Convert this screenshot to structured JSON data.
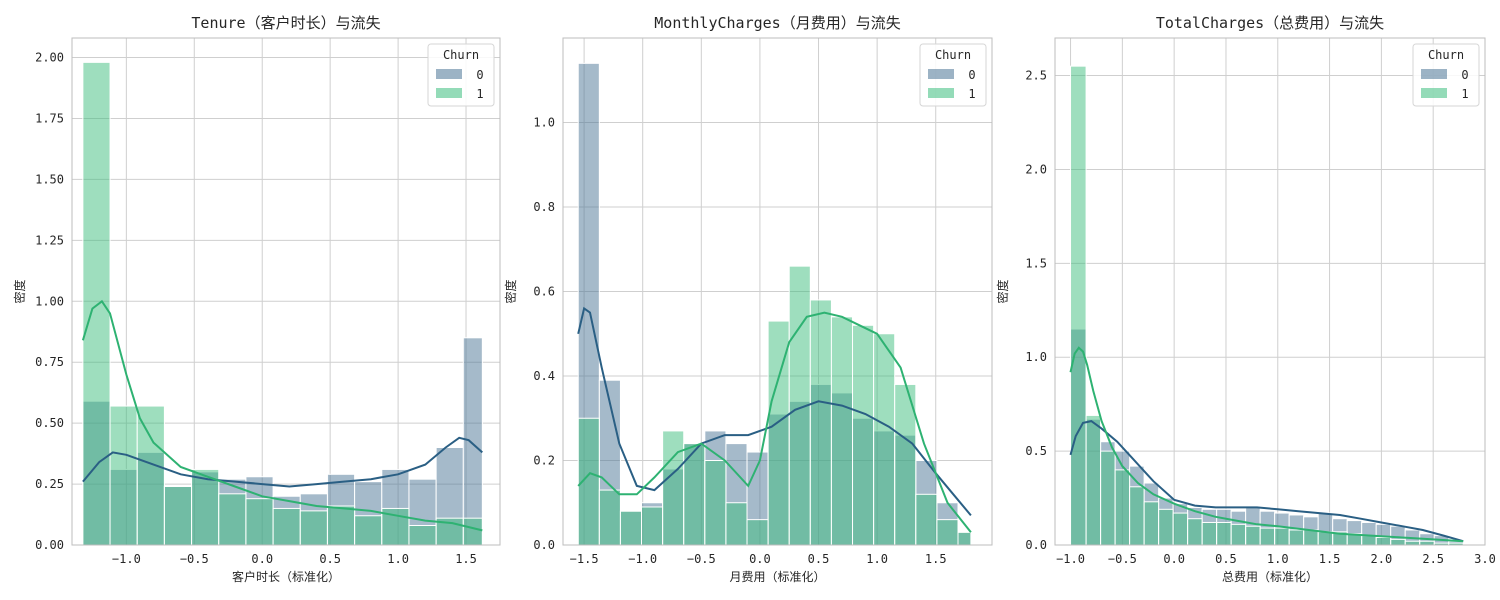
{
  "figure": {
    "background": "#ffffff"
  },
  "legend": {
    "title": "Churn",
    "labels": [
      "0",
      "1"
    ],
    "placement": "top-right"
  },
  "colors": {
    "churn_0_bar": "#4b7596",
    "churn_1_bar": "#3dbe7d",
    "churn_0_kde": "#2a5f84",
    "churn_1_kde": "#2eb272",
    "grid": "#cfcfcf",
    "spine": "#bdbdbd",
    "bar_edge": "#ffffff"
  },
  "chart_data": [
    {
      "type": "histogram",
      "title": "Tenure（客户时长）与流失",
      "xlabel": "客户时长（标准化）",
      "ylabel": "密度",
      "xlim": [
        -1.4,
        1.75
      ],
      "ylim": [
        0,
        2.08
      ],
      "xticks": [
        -1.0,
        -0.5,
        0.0,
        0.5,
        1.0,
        1.5
      ],
      "xtick_labels": [
        "−1.0",
        "−0.5",
        "0.0",
        "0.5",
        "1.0",
        "1.5"
      ],
      "yticks": [
        0,
        0.25,
        0.5,
        0.75,
        1.0,
        1.25,
        1.5,
        1.75,
        2.0
      ],
      "ytick_labels": [
        "0.00",
        "0.25",
        "0.50",
        "0.75",
        "1.00",
        "1.25",
        "1.50",
        "1.75",
        "2.00"
      ],
      "grid": true,
      "bin_edges": [
        -1.32,
        -1.12,
        -0.92,
        -0.72,
        -0.52,
        -0.32,
        -0.12,
        0.08,
        0.28,
        0.48,
        0.68,
        0.88,
        1.08,
        1.28,
        1.48,
        1.62
      ],
      "series": [
        {
          "name": "0",
          "values": [
            0.59,
            0.31,
            0.38,
            0.24,
            0.3,
            0.27,
            0.28,
            0.2,
            0.21,
            0.29,
            0.26,
            0.31,
            0.27,
            0.4,
            0.85
          ],
          "kde_x": [
            -1.32,
            -1.2,
            -1.1,
            -1.0,
            -0.8,
            -0.6,
            -0.4,
            -0.2,
            0.0,
            0.2,
            0.4,
            0.6,
            0.8,
            1.0,
            1.2,
            1.35,
            1.45,
            1.52,
            1.62
          ],
          "kde_y": [
            0.26,
            0.34,
            0.38,
            0.37,
            0.33,
            0.29,
            0.27,
            0.26,
            0.25,
            0.24,
            0.25,
            0.26,
            0.27,
            0.29,
            0.33,
            0.4,
            0.44,
            0.43,
            0.38
          ]
        },
        {
          "name": "1",
          "values": [
            1.98,
            0.57,
            0.57,
            0.24,
            0.31,
            0.21,
            0.19,
            0.15,
            0.14,
            0.16,
            0.12,
            0.15,
            0.08,
            0.11,
            0.11
          ],
          "kde_x": [
            -1.32,
            -1.25,
            -1.18,
            -1.12,
            -1.0,
            -0.9,
            -0.8,
            -0.6,
            -0.4,
            -0.2,
            0.0,
            0.2,
            0.4,
            0.6,
            0.8,
            1.0,
            1.2,
            1.4,
            1.62
          ],
          "kde_y": [
            0.84,
            0.97,
            1.0,
            0.95,
            0.7,
            0.52,
            0.42,
            0.32,
            0.28,
            0.24,
            0.2,
            0.18,
            0.16,
            0.15,
            0.14,
            0.12,
            0.1,
            0.09,
            0.06
          ]
        }
      ]
    },
    {
      "type": "histogram",
      "title": "MonthlyCharges（月费用）与流失",
      "xlabel": "月费用（标准化）",
      "ylabel": "密度",
      "xlim": [
        -1.68,
        1.98
      ],
      "ylim": [
        0,
        1.2
      ],
      "xticks": [
        -1.5,
        -1.0,
        -0.5,
        0.0,
        0.5,
        1.0,
        1.5
      ],
      "xtick_labels": [
        "−1.5",
        "−1.0",
        "−0.5",
        "0.0",
        "0.5",
        "1.0",
        "1.5"
      ],
      "yticks": [
        0,
        0.2,
        0.4,
        0.6,
        0.8,
        1.0
      ],
      "ytick_labels": [
        "0.0",
        "0.2",
        "0.4",
        "0.6",
        "0.8",
        "1.0"
      ],
      "grid": true,
      "bin_edges": [
        -1.55,
        -1.37,
        -1.19,
        -1.01,
        -0.83,
        -0.65,
        -0.47,
        -0.29,
        -0.11,
        0.07,
        0.25,
        0.43,
        0.61,
        0.79,
        0.97,
        1.15,
        1.33,
        1.51,
        1.69,
        1.8
      ],
      "series": [
        {
          "name": "0",
          "values": [
            1.14,
            0.39,
            0.08,
            0.1,
            0.18,
            0.24,
            0.27,
            0.24,
            0.22,
            0.31,
            0.34,
            0.38,
            0.36,
            0.3,
            0.27,
            0.26,
            0.2,
            0.1,
            0.03
          ],
          "kde_x": [
            -1.55,
            -1.5,
            -1.45,
            -1.35,
            -1.2,
            -1.05,
            -0.9,
            -0.7,
            -0.5,
            -0.3,
            -0.1,
            0.1,
            0.3,
            0.5,
            0.7,
            0.9,
            1.1,
            1.3,
            1.5,
            1.65,
            1.8
          ],
          "kde_y": [
            0.5,
            0.56,
            0.55,
            0.42,
            0.24,
            0.14,
            0.13,
            0.18,
            0.24,
            0.26,
            0.26,
            0.28,
            0.32,
            0.34,
            0.33,
            0.31,
            0.28,
            0.24,
            0.17,
            0.12,
            0.07
          ]
        },
        {
          "name": "1",
          "values": [
            0.3,
            0.13,
            0.08,
            0.09,
            0.27,
            0.24,
            0.2,
            0.1,
            0.06,
            0.53,
            0.66,
            0.58,
            0.54,
            0.52,
            0.5,
            0.38,
            0.12,
            0.06,
            0.03
          ],
          "kde_x": [
            -1.55,
            -1.45,
            -1.35,
            -1.2,
            -1.05,
            -0.9,
            -0.7,
            -0.5,
            -0.3,
            -0.1,
            0.0,
            0.1,
            0.25,
            0.4,
            0.55,
            0.7,
            0.85,
            1.0,
            1.2,
            1.4,
            1.6,
            1.8
          ],
          "kde_y": [
            0.14,
            0.17,
            0.16,
            0.12,
            0.12,
            0.16,
            0.22,
            0.24,
            0.2,
            0.14,
            0.2,
            0.34,
            0.48,
            0.54,
            0.55,
            0.54,
            0.52,
            0.5,
            0.42,
            0.24,
            0.1,
            0.03
          ]
        }
      ]
    },
    {
      "type": "histogram",
      "title": "TotalCharges（总费用）与流失",
      "xlabel": "总费用（标准化）",
      "ylabel": "密度",
      "xlim": [
        -1.15,
        3.0
      ],
      "ylim": [
        0,
        2.7
      ],
      "xticks": [
        -1.0,
        -0.5,
        0.0,
        0.5,
        1.0,
        1.5,
        2.0,
        2.5,
        3.0
      ],
      "xtick_labels": [
        "−1.0",
        "−0.5",
        "0.0",
        "0.5",
        "1.0",
        "1.5",
        "2.0",
        "2.5",
        "3.0"
      ],
      "yticks": [
        0,
        0.5,
        1.0,
        1.5,
        2.0,
        2.5
      ],
      "ytick_labels": [
        "0.0",
        "0.5",
        "1.0",
        "1.5",
        "2.0",
        "2.5"
      ],
      "grid": true,
      "bin_edges": [
        -1.0,
        -0.85,
        -0.71,
        -0.57,
        -0.43,
        -0.29,
        -0.15,
        -0.01,
        0.13,
        0.27,
        0.41,
        0.55,
        0.69,
        0.83,
        0.97,
        1.11,
        1.25,
        1.39,
        1.53,
        1.67,
        1.81,
        1.95,
        2.09,
        2.23,
        2.37,
        2.51,
        2.65,
        2.79
      ],
      "series": [
        {
          "name": "0",
          "values": [
            1.15,
            0.67,
            0.55,
            0.5,
            0.42,
            0.33,
            0.25,
            0.22,
            0.2,
            0.19,
            0.19,
            0.18,
            0.2,
            0.18,
            0.17,
            0.16,
            0.15,
            0.17,
            0.14,
            0.13,
            0.12,
            0.11,
            0.1,
            0.08,
            0.06,
            0.05,
            0.02
          ],
          "kde_x": [
            -1.0,
            -0.95,
            -0.88,
            -0.8,
            -0.7,
            -0.55,
            -0.4,
            -0.2,
            0.0,
            0.2,
            0.4,
            0.6,
            0.8,
            1.0,
            1.2,
            1.4,
            1.6,
            1.8,
            2.0,
            2.2,
            2.4,
            2.6,
            2.79
          ],
          "kde_y": [
            0.48,
            0.58,
            0.65,
            0.66,
            0.62,
            0.55,
            0.46,
            0.34,
            0.24,
            0.21,
            0.2,
            0.2,
            0.2,
            0.19,
            0.18,
            0.17,
            0.16,
            0.14,
            0.12,
            0.1,
            0.08,
            0.05,
            0.02
          ]
        },
        {
          "name": "1",
          "values": [
            2.55,
            0.69,
            0.5,
            0.4,
            0.31,
            0.23,
            0.19,
            0.17,
            0.14,
            0.12,
            0.12,
            0.11,
            0.1,
            0.09,
            0.09,
            0.08,
            0.08,
            0.07,
            0.07,
            0.06,
            0.05,
            0.04,
            0.03,
            0.02,
            0.02,
            0.01,
            0.01
          ],
          "kde_x": [
            -1.0,
            -0.96,
            -0.92,
            -0.88,
            -0.84,
            -0.78,
            -0.7,
            -0.6,
            -0.5,
            -0.35,
            -0.2,
            0.0,
            0.2,
            0.4,
            0.6,
            0.8,
            1.0,
            1.3,
            1.6,
            1.9,
            2.2,
            2.5,
            2.79
          ],
          "kde_y": [
            0.92,
            1.02,
            1.05,
            1.03,
            0.96,
            0.82,
            0.66,
            0.52,
            0.42,
            0.33,
            0.27,
            0.22,
            0.18,
            0.15,
            0.13,
            0.11,
            0.1,
            0.08,
            0.06,
            0.05,
            0.04,
            0.03,
            0.02
          ]
        }
      ]
    }
  ]
}
